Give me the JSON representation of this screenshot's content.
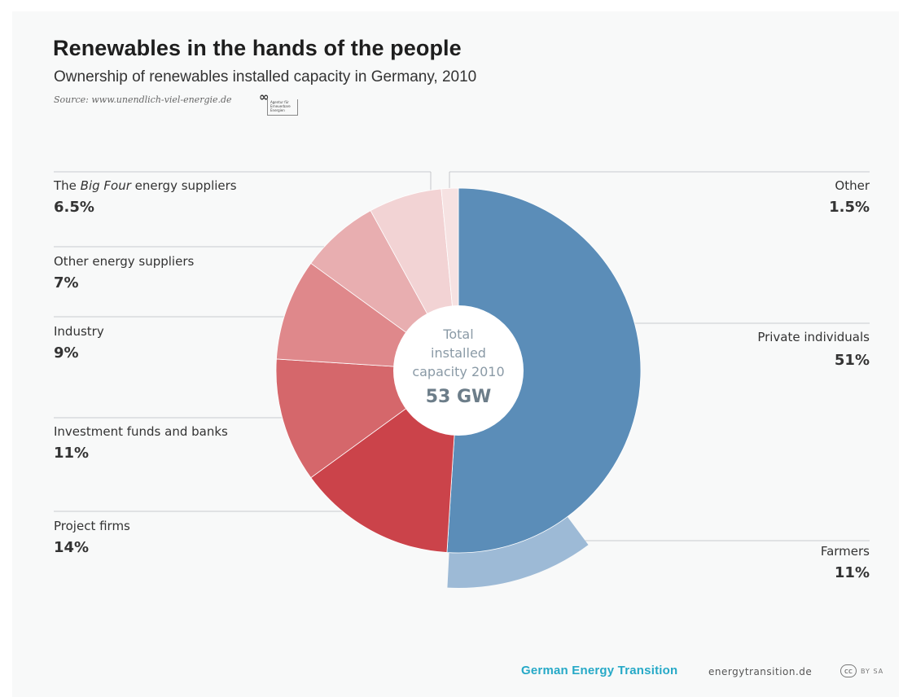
{
  "header": {
    "title": "Renewables in the hands of the people",
    "subtitle": "Ownership of renewables installed capacity in Germany, 2010",
    "source": "Source: www.unendlich-viel-energie.de",
    "agency_logo_mark": "∞",
    "agency_logo_text": "Agentur für Erneuerbare Energien"
  },
  "center": {
    "line1": "Total",
    "line2": "installed",
    "line3": "capacity 2010",
    "value": "53 GW"
  },
  "footer": {
    "brand": "German Energy Transition",
    "url": "energytransition.de",
    "cc_icon": "cc",
    "license": "BY SA"
  },
  "colors": {
    "private_individuals": "#5b8db8",
    "farmers": "#9dbad6",
    "project_firms": "#cb434a",
    "investment_funds": "#d5676b",
    "industry": "#df888b",
    "other_energy_suppliers": "#e8aeb0",
    "big_four": "#f2d3d4",
    "other": "#f6e2e2",
    "center": "#ffffff",
    "center_text": "#8a9aa6",
    "center_value": "#6c7d89"
  },
  "chart_data": {
    "type": "pie",
    "title": "Renewables in the hands of the people",
    "subtitle": "Ownership of renewables installed capacity in Germany, 2010",
    "unit": "%",
    "total_label": "53 GW",
    "series": [
      {
        "key": "private_individuals",
        "label": "Private individuals",
        "label_prefix": "",
        "label_emph": "",
        "label_suffix": "",
        "value": 51,
        "display": "51%"
      },
      {
        "key": "farmers",
        "label": "Farmers",
        "label_prefix": "",
        "label_emph": "",
        "label_suffix": "",
        "value": 11,
        "display": "11%",
        "subset_of": "private_individuals"
      },
      {
        "key": "project_firms",
        "label": "Project firms",
        "label_prefix": "",
        "label_emph": "",
        "label_suffix": "",
        "value": 14,
        "display": "14%"
      },
      {
        "key": "investment_funds",
        "label": "Investment funds and banks",
        "label_prefix": "",
        "label_emph": "",
        "label_suffix": "",
        "value": 11,
        "display": "11%"
      },
      {
        "key": "industry",
        "label": "Industry",
        "label_prefix": "",
        "label_emph": "",
        "label_suffix": "",
        "value": 9,
        "display": "9%"
      },
      {
        "key": "other_energy_suppliers",
        "label": "Other energy suppliers",
        "label_prefix": "",
        "label_emph": "",
        "label_suffix": "",
        "value": 7,
        "display": "7%"
      },
      {
        "key": "big_four",
        "label": "The Big Four energy suppliers",
        "label_prefix": "The ",
        "label_emph": "Big Four",
        "label_suffix": " energy suppliers",
        "value": 6.5,
        "display": "6.5%"
      },
      {
        "key": "other",
        "label": "Other",
        "label_prefix": "",
        "label_emph": "",
        "label_suffix": "",
        "value": 1.5,
        "display": "1.5%"
      }
    ]
  }
}
